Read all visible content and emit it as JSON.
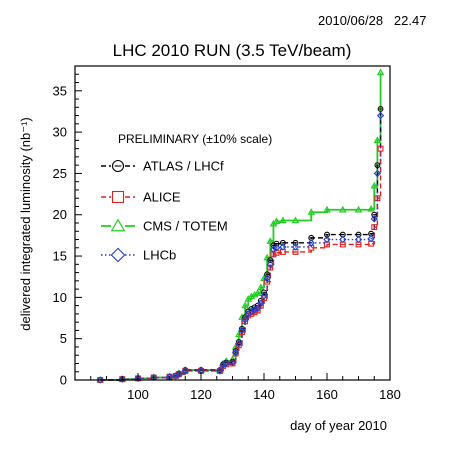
{
  "timestamp": {
    "date": "2010/06/28",
    "time": "22.47"
  },
  "chart_data": {
    "type": "line",
    "title": "LHC 2010 RUN (3.5 TeV/beam)",
    "xlabel": "day of year 2010",
    "ylabel": "delivered integrated luminosity (nb⁻¹)",
    "xlim": [
      80,
      180
    ],
    "ylim": [
      0,
      38
    ],
    "xticks": [
      100,
      120,
      140,
      160,
      180
    ],
    "yticks": [
      0,
      5,
      10,
      15,
      20,
      25,
      30,
      35
    ],
    "grid": false,
    "legend_title": "PRELIMINARY (±10% scale)",
    "legend_position": "upper-left",
    "series": [
      {
        "name": "ATLAS / LHCf",
        "color": "#000000",
        "marker": "circle-dash",
        "line": "dashed",
        "x": [
          88,
          95,
          100,
          105,
          110,
          112,
          113,
          115,
          120,
          126,
          127,
          128,
          130,
          131,
          132,
          133,
          134,
          135,
          136,
          137,
          138,
          139,
          140,
          141,
          142,
          143,
          144,
          146,
          150,
          155,
          160,
          165,
          170,
          174,
          175,
          176,
          177
        ],
        "y": [
          0.0,
          0.1,
          0.2,
          0.3,
          0.4,
          0.5,
          0.8,
          1.2,
          1.2,
          1.2,
          1.9,
          2.1,
          2.2,
          3.5,
          4.6,
          6.2,
          7.6,
          8.3,
          8.6,
          8.8,
          9.0,
          9.6,
          10.6,
          12.8,
          14.5,
          16.3,
          16.5,
          16.6,
          16.6,
          17.2,
          17.6,
          17.6,
          17.6,
          17.7,
          20.0,
          26.0,
          32.8
        ]
      },
      {
        "name": "ALICE",
        "color": "#e0201f",
        "marker": "square",
        "line": "dashed",
        "x": [
          88,
          95,
          100,
          105,
          110,
          112,
          113,
          115,
          120,
          126,
          127,
          128,
          130,
          131,
          132,
          133,
          134,
          135,
          136,
          137,
          138,
          139,
          140,
          141,
          142,
          143,
          144,
          146,
          150,
          155,
          160,
          165,
          170,
          174,
          175,
          176,
          177
        ],
        "y": [
          0.0,
          0.1,
          0.2,
          0.3,
          0.4,
          0.5,
          0.7,
          1.1,
          1.1,
          1.1,
          1.7,
          1.9,
          2.0,
          3.2,
          4.2,
          5.8,
          7.1,
          7.8,
          8.0,
          8.2,
          8.4,
          9.0,
          9.9,
          11.9,
          13.6,
          15.2,
          15.4,
          15.5,
          15.5,
          16.0,
          16.4,
          16.4,
          16.4,
          16.5,
          18.5,
          22.0,
          28.0
        ]
      },
      {
        "name": "CMS / TOTEM",
        "color": "#22cc22",
        "marker": "triangle",
        "line": "solid",
        "x": [
          88,
          95,
          100,
          105,
          110,
          112,
          113,
          115,
          120,
          126,
          127,
          128,
          130,
          131,
          132,
          133,
          134,
          135,
          136,
          137,
          138,
          139,
          140,
          141,
          142,
          143,
          144,
          146,
          150,
          155,
          160,
          165,
          170,
          174,
          175,
          176,
          177
        ],
        "y": [
          0.0,
          0.1,
          0.2,
          0.3,
          0.4,
          0.5,
          0.8,
          1.2,
          1.2,
          1.2,
          2.0,
          2.3,
          2.5,
          4.0,
          5.5,
          7.6,
          9.0,
          9.8,
          10.1,
          10.3,
          10.5,
          11.2,
          12.3,
          14.8,
          16.8,
          18.9,
          19.2,
          19.3,
          19.3,
          20.3,
          20.6,
          20.6,
          20.6,
          20.7,
          23.5,
          29.0,
          37.2
        ]
      },
      {
        "name": "LHCb",
        "color": "#1f3fd0",
        "marker": "diamond",
        "line": "dotted",
        "x": [
          88,
          95,
          100,
          105,
          110,
          112,
          113,
          115,
          120,
          126,
          127,
          128,
          130,
          131,
          132,
          133,
          134,
          135,
          136,
          137,
          138,
          139,
          140,
          141,
          142,
          143,
          144,
          146,
          150,
          155,
          160,
          165,
          170,
          174,
          175,
          176,
          177
        ],
        "y": [
          0.0,
          0.1,
          0.2,
          0.3,
          0.4,
          0.5,
          0.7,
          1.1,
          1.1,
          1.1,
          1.8,
          2.0,
          2.1,
          3.3,
          4.4,
          6.0,
          7.3,
          8.0,
          8.3,
          8.5,
          8.7,
          9.3,
          10.2,
          12.3,
          14.0,
          15.8,
          16.0,
          16.1,
          16.1,
          16.6,
          17.0,
          17.0,
          17.0,
          17.1,
          19.5,
          25.0,
          32.0
        ]
      }
    ]
  }
}
